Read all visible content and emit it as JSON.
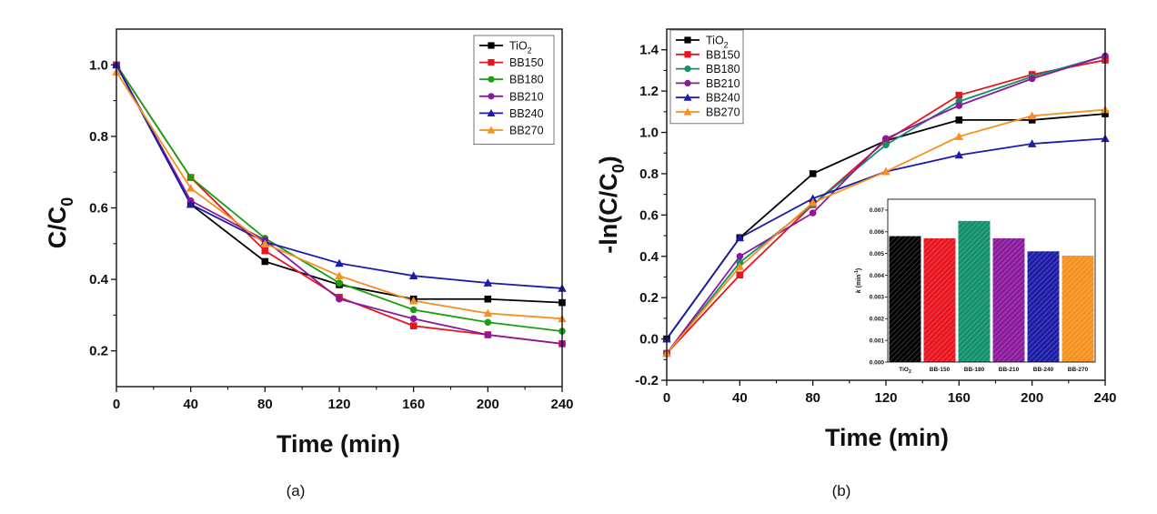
{
  "chart_data": [
    {
      "type": "line",
      "panel": "(a)",
      "caption": "(a)",
      "xlabel": "Time (min)",
      "ylabel_main": "C/C",
      "ylabel_sub": "0",
      "x": [
        0,
        40,
        80,
        120,
        160,
        200,
        240
      ],
      "xlim": [
        0,
        240
      ],
      "ylim": [
        0.1,
        1.1
      ],
      "xticks": [
        0,
        40,
        80,
        120,
        160,
        200,
        240
      ],
      "yticks": [
        0.2,
        0.4,
        0.6,
        0.8,
        1.0
      ],
      "ytick_labels": [
        "0.2",
        "0.4",
        "0.6",
        "0.8",
        "1.0"
      ],
      "legend_position": "top-right",
      "series": [
        {
          "name": "TiO",
          "name_sub": "2",
          "color": "#000000",
          "marker": "square",
          "values": [
            1.0,
            0.61,
            0.45,
            0.385,
            0.345,
            0.345,
            0.335
          ]
        },
        {
          "name": "BB150",
          "color": "#e8141e",
          "marker": "square",
          "values": [
            1.0,
            0.685,
            0.48,
            0.35,
            0.27,
            0.245,
            0.22
          ]
        },
        {
          "name": "BB180",
          "color": "#17a012",
          "marker": "circle",
          "values": [
            1.0,
            0.685,
            0.515,
            0.39,
            0.315,
            0.28,
            0.255
          ]
        },
        {
          "name": "BB210",
          "color": "#8a1a9c",
          "marker": "circle",
          "values": [
            1.0,
            0.62,
            0.51,
            0.345,
            0.29,
            0.245,
            0.22
          ]
        },
        {
          "name": "BB240",
          "color": "#1c1ca6",
          "marker": "triangle",
          "values": [
            1.0,
            0.61,
            0.505,
            0.445,
            0.41,
            0.39,
            0.375
          ]
        },
        {
          "name": "BB270",
          "color": "#f5911e",
          "marker": "triangle",
          "values": [
            0.98,
            0.655,
            0.5,
            0.41,
            0.34,
            0.305,
            0.29
          ]
        }
      ]
    },
    {
      "type": "line",
      "panel": "(b)",
      "caption": "(b)",
      "xlabel": "Time (min)",
      "ylabel_main": "-ln(C/C",
      "ylabel_sub": "0",
      "ylabel_end": ")",
      "x": [
        0,
        40,
        80,
        120,
        160,
        200,
        240
      ],
      "xlim": [
        0,
        240
      ],
      "ylim": [
        -0.2,
        1.5
      ],
      "xticks": [
        0,
        40,
        80,
        120,
        160,
        200,
        240
      ],
      "yticks": [
        -0.2,
        0.0,
        0.2,
        0.4,
        0.6,
        0.8,
        1.0,
        1.2,
        1.4
      ],
      "ytick_labels": [
        "-0.2",
        "0.0",
        "0.2",
        "0.4",
        "0.6",
        "0.8",
        "1.0",
        "1.2",
        "1.4"
      ],
      "legend_position": "top-left",
      "series": [
        {
          "name": "TiO",
          "name_sub": "2",
          "color": "#000000",
          "marker": "square",
          "values": [
            0.0,
            0.49,
            0.8,
            0.96,
            1.06,
            1.06,
            1.09
          ]
        },
        {
          "name": "BB150",
          "color": "#e8141e",
          "marker": "square",
          "values": [
            -0.07,
            0.31,
            0.65,
            0.96,
            1.18,
            1.28,
            1.35
          ]
        },
        {
          "name": "BB180",
          "color": "#12906a",
          "marker": "circle",
          "values": [
            -0.07,
            0.37,
            0.65,
            0.94,
            1.15,
            1.27,
            1.37
          ]
        },
        {
          "name": "BB210",
          "color": "#8a1a9c",
          "marker": "circle",
          "values": [
            -0.07,
            0.4,
            0.61,
            0.97,
            1.13,
            1.26,
            1.37
          ]
        },
        {
          "name": "BB240",
          "color": "#1c1ca6",
          "marker": "triangle",
          "values": [
            0.0,
            0.49,
            0.68,
            0.81,
            0.89,
            0.945,
            0.97
          ]
        },
        {
          "name": "BB270",
          "color": "#f5911e",
          "marker": "triangle",
          "values": [
            -0.07,
            0.35,
            0.66,
            0.81,
            0.98,
            1.08,
            1.11
          ]
        }
      ]
    },
    {
      "type": "bar",
      "panel": "(b) inset",
      "ylabel_main": "k",
      "ylabel_rest": " (min",
      "ylabel_sup": "-1",
      "ylabel_end": ")",
      "ylim": [
        0,
        0.0075
      ],
      "yticks": [
        0.0,
        0.001,
        0.002,
        0.003,
        0.004,
        0.005,
        0.006,
        0.007
      ],
      "ytick_labels": [
        "0.000",
        "0.001",
        "0.002",
        "0.003",
        "0.004",
        "0.005",
        "0.006",
        "0.007"
      ],
      "categories": [
        "TiO2",
        "BB-150",
        "BB-180",
        "BB-210",
        "BB-240",
        "BB-270"
      ],
      "category_labels": [
        {
          "main": "TiO",
          "sub": "2"
        },
        {
          "main": "BB-150",
          "sub": ""
        },
        {
          "main": "BB-180",
          "sub": ""
        },
        {
          "main": "BB-210",
          "sub": ""
        },
        {
          "main": "BB-240",
          "sub": ""
        },
        {
          "main": "BB-270",
          "sub": ""
        }
      ],
      "values": [
        0.0058,
        0.0057,
        0.0065,
        0.0057,
        0.0051,
        0.0049
      ],
      "colors": [
        "#000000",
        "#e8141e",
        "#12906a",
        "#8a1a9c",
        "#1c1ca6",
        "#f5911e"
      ],
      "hatched": true
    }
  ]
}
